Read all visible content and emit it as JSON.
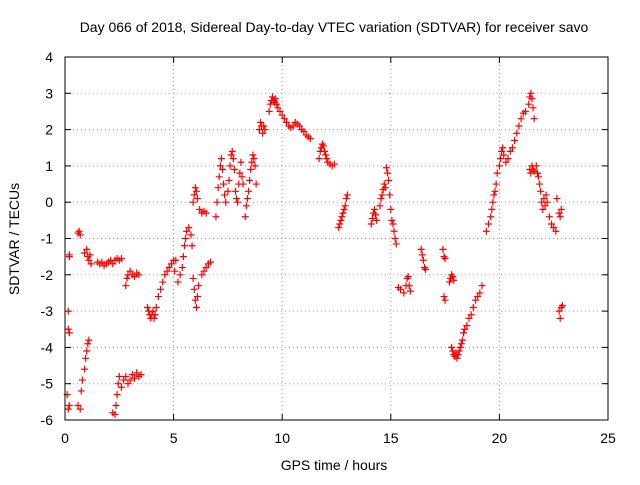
{
  "chart_data": {
    "type": "scatter",
    "title": "Day 066 of 2018, Sidereal Day-to-day VTEC variation (SDTVAR) for receiver savo",
    "xlabel": "GPS time / hours",
    "ylabel": "SDTVAR / TECUs",
    "xlim": [
      0,
      25
    ],
    "ylim": [
      -6,
      4
    ],
    "xticks": [
      0,
      5,
      10,
      15,
      20,
      25
    ],
    "yticks": [
      -6,
      -5,
      -4,
      -3,
      -2,
      -1,
      0,
      1,
      2,
      3,
      4
    ],
    "grid": true,
    "marker": "+",
    "series_color": "#ff0000",
    "series": [
      {
        "name": "SDTVAR",
        "points": [
          [
            0.2,
            -1.5
          ],
          [
            0.2,
            -1.45
          ],
          [
            0.15,
            -3.0
          ],
          [
            0.15,
            -3.5
          ],
          [
            0.2,
            -3.6
          ],
          [
            0.2,
            -5.6
          ],
          [
            0.15,
            -5.7
          ],
          [
            0.1,
            -5.3
          ],
          [
            0.6,
            -0.85
          ],
          [
            0.65,
            -0.8
          ],
          [
            0.7,
            -0.9
          ],
          [
            0.6,
            -5.6
          ],
          [
            0.7,
            -5.7
          ],
          [
            0.75,
            -5.2
          ],
          [
            0.8,
            -4.9
          ],
          [
            0.9,
            -4.6
          ],
          [
            0.95,
            -4.3
          ],
          [
            1.0,
            -4.1
          ],
          [
            1.05,
            -3.9
          ],
          [
            1.1,
            -3.8
          ],
          [
            0.9,
            -1.4
          ],
          [
            1.0,
            -1.3
          ],
          [
            1.05,
            -1.5
          ],
          [
            1.1,
            -1.6
          ],
          [
            1.2,
            -1.7
          ],
          [
            1.15,
            -1.45
          ],
          [
            1.5,
            -1.65
          ],
          [
            1.6,
            -1.7
          ],
          [
            1.7,
            -1.65
          ],
          [
            1.8,
            -1.75
          ],
          [
            1.9,
            -1.7
          ],
          [
            2.0,
            -1.65
          ],
          [
            2.1,
            -1.6
          ],
          [
            2.2,
            -1.7
          ],
          [
            2.3,
            -1.6
          ],
          [
            2.4,
            -1.55
          ],
          [
            2.5,
            -1.6
          ],
          [
            2.6,
            -1.55
          ],
          [
            2.2,
            -5.8
          ],
          [
            2.3,
            -5.85
          ],
          [
            2.35,
            -5.6
          ],
          [
            2.4,
            -5.3
          ],
          [
            2.45,
            -5.0
          ],
          [
            2.5,
            -4.8
          ],
          [
            2.6,
            -5.1
          ],
          [
            2.7,
            -4.9
          ],
          [
            2.8,
            -4.8
          ],
          [
            2.9,
            -5.0
          ],
          [
            3.0,
            -4.9
          ],
          [
            3.1,
            -4.75
          ],
          [
            3.2,
            -4.85
          ],
          [
            3.3,
            -4.7
          ],
          [
            3.4,
            -4.8
          ],
          [
            3.5,
            -4.75
          ],
          [
            2.8,
            -2.3
          ],
          [
            2.85,
            -2.1
          ],
          [
            2.9,
            -2.0
          ],
          [
            3.0,
            -1.9
          ],
          [
            3.1,
            -2.0
          ],
          [
            3.2,
            -2.05
          ],
          [
            3.3,
            -1.95
          ],
          [
            3.4,
            -2.0
          ],
          [
            3.8,
            -2.9
          ],
          [
            3.85,
            -3.0
          ],
          [
            3.9,
            -3.1
          ],
          [
            3.95,
            -3.2
          ],
          [
            4.0,
            -3.1
          ],
          [
            4.05,
            -3.0
          ],
          [
            4.1,
            -3.2
          ],
          [
            4.15,
            -3.1
          ],
          [
            4.2,
            -2.9
          ],
          [
            4.3,
            -2.6
          ],
          [
            4.4,
            -2.4
          ],
          [
            4.5,
            -2.2
          ],
          [
            4.6,
            -2.0
          ],
          [
            4.7,
            -1.9
          ],
          [
            4.8,
            -1.8
          ],
          [
            4.9,
            -1.7
          ],
          [
            5.0,
            -1.6
          ],
          [
            5.05,
            -1.9
          ],
          [
            5.1,
            -1.6
          ],
          [
            5.2,
            -2.2
          ],
          [
            5.3,
            -2.0
          ],
          [
            5.4,
            -1.8
          ],
          [
            5.45,
            -1.5
          ],
          [
            5.5,
            -1.2
          ],
          [
            5.55,
            -1.0
          ],
          [
            5.6,
            -0.8
          ],
          [
            5.7,
            -0.7
          ],
          [
            5.8,
            -0.9
          ],
          [
            5.85,
            -1.2
          ],
          [
            5.9,
            -2.1
          ],
          [
            5.95,
            -2.4
          ],
          [
            6.0,
            -2.7
          ],
          [
            6.05,
            -2.9
          ],
          [
            6.1,
            -2.6
          ],
          [
            6.15,
            -2.3
          ],
          [
            5.9,
            0.0
          ],
          [
            5.95,
            0.2
          ],
          [
            6.0,
            0.4
          ],
          [
            6.05,
            0.3
          ],
          [
            6.1,
            0.1
          ],
          [
            6.2,
            -0.2
          ],
          [
            6.3,
            -0.3
          ],
          [
            6.4,
            -0.25
          ],
          [
            6.5,
            -0.3
          ],
          [
            6.3,
            -2.0
          ],
          [
            6.4,
            -1.9
          ],
          [
            6.5,
            -1.8
          ],
          [
            6.6,
            -1.7
          ],
          [
            6.7,
            -1.65
          ],
          [
            6.95,
            -0.4
          ],
          [
            7.0,
            0.0
          ],
          [
            7.05,
            0.4
          ],
          [
            7.1,
            0.7
          ],
          [
            7.15,
            1.0
          ],
          [
            7.2,
            1.2
          ],
          [
            7.25,
            0.9
          ],
          [
            7.3,
            0.5
          ],
          [
            7.35,
            0.2
          ],
          [
            7.4,
            0.0
          ],
          [
            7.5,
            0.3
          ],
          [
            7.55,
            0.6
          ],
          [
            7.6,
            1.0
          ],
          [
            7.65,
            1.3
          ],
          [
            7.7,
            1.4
          ],
          [
            7.75,
            1.2
          ],
          [
            7.8,
            0.9
          ],
          [
            7.85,
            0.3
          ],
          [
            7.9,
            0.1
          ],
          [
            7.95,
            0.0
          ],
          [
            8.0,
            0.5
          ],
          [
            8.05,
            0.8
          ],
          [
            8.1,
            1.1
          ],
          [
            8.15,
            0.7
          ],
          [
            8.2,
            0.5
          ],
          [
            8.3,
            -0.4
          ],
          [
            8.35,
            -0.1
          ],
          [
            8.4,
            0.1
          ],
          [
            8.45,
            0.3
          ],
          [
            8.5,
            0.6
          ],
          [
            8.55,
            0.9
          ],
          [
            8.6,
            1.1
          ],
          [
            8.65,
            1.3
          ],
          [
            8.7,
            1.2
          ],
          [
            8.75,
            1.0
          ],
          [
            8.8,
            0.5
          ],
          [
            8.95,
            2.0
          ],
          [
            9.0,
            2.2
          ],
          [
            9.05,
            2.1
          ],
          [
            9.1,
            1.9
          ],
          [
            9.15,
            2.1
          ],
          [
            9.2,
            2.0
          ],
          [
            9.4,
            2.5
          ],
          [
            9.45,
            2.7
          ],
          [
            9.5,
            2.8
          ],
          [
            9.55,
            2.9
          ],
          [
            9.6,
            2.8
          ],
          [
            9.65,
            2.75
          ],
          [
            9.7,
            2.85
          ],
          [
            9.75,
            2.7
          ],
          [
            9.8,
            2.6
          ],
          [
            9.9,
            2.5
          ],
          [
            10.0,
            2.4
          ],
          [
            10.1,
            2.3
          ],
          [
            10.2,
            2.2
          ],
          [
            10.3,
            2.1
          ],
          [
            10.4,
            2.05
          ],
          [
            10.5,
            2.1
          ],
          [
            10.6,
            2.2
          ],
          [
            10.7,
            2.15
          ],
          [
            10.8,
            2.1
          ],
          [
            10.9,
            2.0
          ],
          [
            11.0,
            1.95
          ],
          [
            11.1,
            1.85
          ],
          [
            11.2,
            1.8
          ],
          [
            11.3,
            1.75
          ],
          [
            11.7,
            1.2
          ],
          [
            11.75,
            1.4
          ],
          [
            11.8,
            1.5
          ],
          [
            11.85,
            1.6
          ],
          [
            11.9,
            1.55
          ],
          [
            11.95,
            1.4
          ],
          [
            12.0,
            1.3
          ],
          [
            12.05,
            1.2
          ],
          [
            12.1,
            1.1
          ],
          [
            12.2,
            1.05
          ],
          [
            12.3,
            1.0
          ],
          [
            12.4,
            1.05
          ],
          [
            12.6,
            -0.7
          ],
          [
            12.65,
            -0.6
          ],
          [
            12.7,
            -0.5
          ],
          [
            12.75,
            -0.4
          ],
          [
            12.8,
            -0.3
          ],
          [
            12.85,
            -0.2
          ],
          [
            12.9,
            -0.1
          ],
          [
            12.95,
            0.1
          ],
          [
            13.0,
            0.2
          ],
          [
            14.1,
            -0.6
          ],
          [
            14.15,
            -0.45
          ],
          [
            14.2,
            -0.3
          ],
          [
            14.25,
            -0.2
          ],
          [
            14.3,
            -0.35
          ],
          [
            14.35,
            -0.5
          ],
          [
            14.5,
            -0.1
          ],
          [
            14.55,
            0.1
          ],
          [
            14.6,
            0.2
          ],
          [
            14.65,
            0.35
          ],
          [
            14.7,
            0.5
          ],
          [
            14.75,
            0.4
          ],
          [
            14.8,
            0.95
          ],
          [
            14.85,
            0.8
          ],
          [
            14.9,
            0.6
          ],
          [
            14.95,
            0.2
          ],
          [
            15.0,
            -0.2
          ],
          [
            15.05,
            -0.5
          ],
          [
            15.1,
            -0.6
          ],
          [
            15.15,
            -0.8
          ],
          [
            15.2,
            -1.0
          ],
          [
            15.25,
            -1.15
          ],
          [
            15.35,
            -2.35
          ],
          [
            15.45,
            -2.4
          ],
          [
            15.6,
            -2.5
          ],
          [
            15.7,
            -2.3
          ],
          [
            15.75,
            -2.1
          ],
          [
            15.8,
            -2.05
          ],
          [
            15.85,
            -2.3
          ],
          [
            15.9,
            -2.45
          ],
          [
            16.4,
            -1.3
          ],
          [
            16.45,
            -1.45
          ],
          [
            16.5,
            -1.6
          ],
          [
            16.55,
            -1.8
          ],
          [
            16.6,
            -1.85
          ],
          [
            17.4,
            -1.3
          ],
          [
            17.45,
            -1.5
          ],
          [
            17.5,
            -1.55
          ],
          [
            17.45,
            -2.6
          ],
          [
            17.5,
            -2.7
          ],
          [
            17.7,
            -2.2
          ],
          [
            17.75,
            -2.1
          ],
          [
            17.8,
            -2.0
          ],
          [
            17.85,
            -2.05
          ],
          [
            17.9,
            -2.15
          ],
          [
            17.8,
            -4.0
          ],
          [
            17.85,
            -4.1
          ],
          [
            17.9,
            -4.2
          ],
          [
            17.95,
            -4.25
          ],
          [
            18.0,
            -4.15
          ],
          [
            18.05,
            -4.3
          ],
          [
            18.1,
            -4.2
          ],
          [
            18.15,
            -4.1
          ],
          [
            18.2,
            -4.0
          ],
          [
            18.25,
            -3.9
          ],
          [
            18.3,
            -3.8
          ],
          [
            18.35,
            -3.6
          ],
          [
            18.4,
            -3.5
          ],
          [
            18.5,
            -3.4
          ],
          [
            18.6,
            -3.2
          ],
          [
            18.7,
            -3.1
          ],
          [
            18.8,
            -2.9
          ],
          [
            18.9,
            -2.7
          ],
          [
            19.0,
            -2.6
          ],
          [
            19.1,
            -2.5
          ],
          [
            19.2,
            -2.3
          ],
          [
            19.4,
            -0.8
          ],
          [
            19.5,
            -0.6
          ],
          [
            19.6,
            -0.4
          ],
          [
            19.65,
            -0.2
          ],
          [
            19.7,
            0.0
          ],
          [
            19.75,
            0.2
          ],
          [
            19.8,
            0.3
          ],
          [
            19.85,
            0.5
          ],
          [
            19.9,
            0.8
          ],
          [
            20.0,
            1.0
          ],
          [
            20.05,
            1.2
          ],
          [
            20.1,
            1.4
          ],
          [
            20.15,
            1.5
          ],
          [
            20.2,
            1.3
          ],
          [
            20.3,
            1.1
          ],
          [
            20.4,
            1.2
          ],
          [
            20.5,
            1.4
          ],
          [
            20.6,
            1.5
          ],
          [
            20.7,
            1.7
          ],
          [
            20.8,
            1.9
          ],
          [
            20.9,
            2.1
          ],
          [
            21.0,
            2.3
          ],
          [
            21.1,
            2.45
          ],
          [
            21.2,
            2.5
          ],
          [
            21.35,
            2.7
          ],
          [
            21.4,
            2.9
          ],
          [
            21.45,
            3.0
          ],
          [
            21.5,
            2.85
          ],
          [
            21.55,
            2.6
          ],
          [
            21.6,
            2.3
          ],
          [
            21.4,
            0.9
          ],
          [
            21.45,
            0.8
          ],
          [
            21.5,
            1.0
          ],
          [
            21.55,
            0.9
          ],
          [
            21.6,
            0.85
          ],
          [
            21.7,
            1.0
          ],
          [
            21.75,
            0.8
          ],
          [
            21.8,
            0.7
          ],
          [
            21.85,
            0.5
          ],
          [
            21.9,
            0.3
          ],
          [
            21.95,
            0.0
          ],
          [
            22.0,
            -0.2
          ],
          [
            22.05,
            0.1
          ],
          [
            22.1,
            -0.1
          ],
          [
            22.15,
            0.2
          ],
          [
            22.2,
            0.0
          ],
          [
            22.3,
            -0.4
          ],
          [
            22.4,
            -0.6
          ],
          [
            22.5,
            -0.7
          ],
          [
            22.6,
            -0.8
          ],
          [
            22.65,
            0.1
          ],
          [
            22.75,
            -0.3
          ],
          [
            22.8,
            -0.4
          ],
          [
            22.85,
            -0.2
          ],
          [
            22.75,
            -3.0
          ],
          [
            22.8,
            -3.2
          ],
          [
            22.85,
            -2.9
          ],
          [
            22.9,
            -2.85
          ]
        ]
      }
    ]
  }
}
